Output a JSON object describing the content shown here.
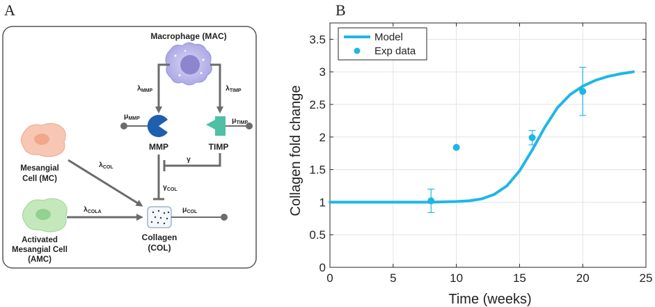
{
  "panel_a": {
    "letter": "A",
    "macrophage": "Macrophage (MAC)",
    "mmp": "MMP",
    "timp": "TIMP",
    "mesangial": [
      "Mesangial",
      "Cell (MC)"
    ],
    "activated": [
      "Activated",
      "Mesangial Cell",
      "(AMC)"
    ],
    "collagen": [
      "Collagen",
      "(COL)"
    ],
    "params": {
      "lambda_mmp": {
        "sym": "λ",
        "sub": "MMP"
      },
      "lambda_timp": {
        "sym": "λ",
        "sub": "TIMP"
      },
      "mu_mmp": {
        "sym": "μ",
        "sub": "MMP"
      },
      "mu_timp": {
        "sym": "μ",
        "sub": "TIMP"
      },
      "gamma": {
        "sym": "γ",
        "sub": ""
      },
      "gamma_col": {
        "sym": "γ",
        "sub": "COL"
      },
      "lambda_col": {
        "sym": "λ",
        "sub": "COL"
      },
      "lambda_cola": {
        "sym": "λ",
        "sub": "COLA"
      },
      "mu_col": {
        "sym": "μ",
        "sub": "COL"
      }
    },
    "colors": {
      "macrophage": "#b9b6ea",
      "mmp": "#1f5fae",
      "timp": "#4fc0a5",
      "mesangial": "#f7c7b3",
      "activated": "#c4e8bb",
      "arrow": "#6b6b6b"
    }
  },
  "panel_b": {
    "letter": "B",
    "chart_data": {
      "type": "line",
      "xlabel": "Time (weeks)",
      "ylabel": "Collagen fold change",
      "xlim": [
        0,
        25
      ],
      "ylim": [
        0,
        3.75
      ],
      "xticks": [
        0,
        5,
        10,
        15,
        20,
        25
      ],
      "yticks": [
        0,
        0.5,
        1,
        1.5,
        2,
        2.5,
        3,
        3.5
      ],
      "grid": true,
      "legend_location": "top-left",
      "series": [
        {
          "name": "Model",
          "kind": "line",
          "color": "#1fb6e6",
          "x": [
            0,
            2,
            4,
            6,
            8,
            10,
            11,
            12,
            13,
            14,
            15,
            16,
            17,
            18,
            19,
            20,
            21,
            22,
            23,
            24
          ],
          "y": [
            1.0,
            1.0,
            1.0,
            1.0,
            1.0,
            1.01,
            1.02,
            1.05,
            1.12,
            1.25,
            1.48,
            1.8,
            2.15,
            2.45,
            2.65,
            2.78,
            2.87,
            2.93,
            2.97,
            3.0
          ]
        },
        {
          "name": "Exp data",
          "kind": "scatter",
          "color": "#1fb6e6",
          "x": [
            8,
            10,
            16,
            20
          ],
          "y": [
            1.02,
            1.84,
            1.99,
            2.7
          ],
          "err": [
            0.18,
            0.0,
            0.11,
            0.37
          ]
        }
      ]
    }
  }
}
